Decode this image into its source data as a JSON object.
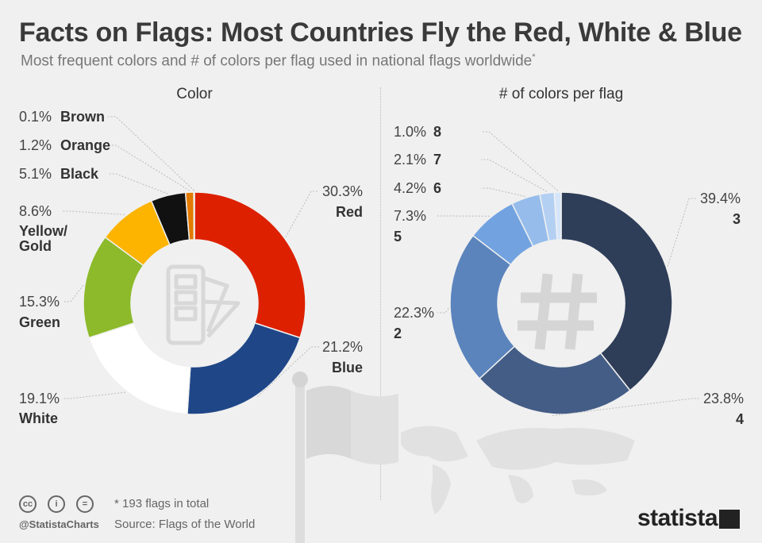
{
  "title": "Facts on Flags: Most Countries Fly the Red, White & Blue",
  "subtitle": "Most frequent colors and # of colors per flag used in national flags worldwide",
  "subtitle_mark": "*",
  "footer": {
    "note": "* 193 flags in total",
    "source": "Source: Flags of the World",
    "handle": "@StatistaCharts",
    "brand": "statista",
    "license_icons": [
      "cc-icon",
      "by-icon",
      "nd-icon"
    ]
  },
  "chart_data": [
    {
      "type": "pie",
      "title": "Color",
      "unit": "%",
      "slices": [
        {
          "label": "Red",
          "value": 30.3,
          "color": "#dd2000"
        },
        {
          "label": "Blue",
          "value": 21.2,
          "color": "#1f4788"
        },
        {
          "label": "White",
          "value": 19.1,
          "color": "#ffffff"
        },
        {
          "label": "Green",
          "value": 15.3,
          "color": "#8cba2a"
        },
        {
          "label": "Yellow/ Gold",
          "value": 8.6,
          "color": "#fcb400"
        },
        {
          "label": "Black",
          "value": 5.1,
          "color": "#111111"
        },
        {
          "label": "Orange",
          "value": 1.2,
          "color": "#e37b00"
        },
        {
          "label": "Brown",
          "value": 0.1,
          "color": "#7a4a20"
        }
      ]
    },
    {
      "type": "pie",
      "title": "# of colors per flag",
      "unit": "%",
      "slices": [
        {
          "label": "3",
          "value": 39.4,
          "color": "#2e3d58"
        },
        {
          "label": "4",
          "value": 23.8,
          "color": "#435d86"
        },
        {
          "label": "2",
          "value": 22.3,
          "color": "#5b84bd"
        },
        {
          "label": "5",
          "value": 7.3,
          "color": "#72a3e0"
        },
        {
          "label": "6",
          "value": 4.2,
          "color": "#95bceb"
        },
        {
          "label": "7",
          "value": 2.1,
          "color": "#b3d0f3"
        },
        {
          "label": "8",
          "value": 1.0,
          "color": "#d6e6fa"
        }
      ]
    }
  ]
}
